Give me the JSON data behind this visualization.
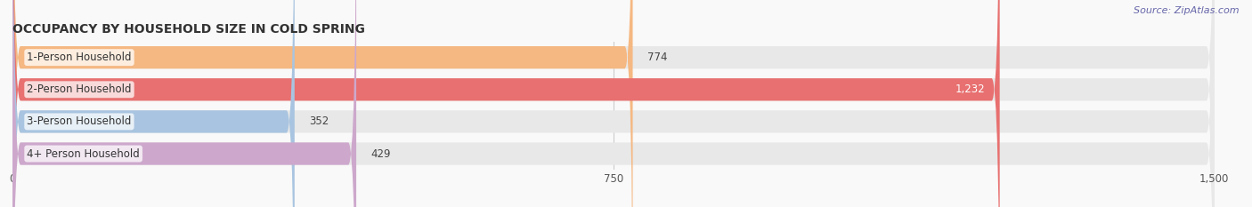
{
  "title": "OCCUPANCY BY HOUSEHOLD SIZE IN COLD SPRING",
  "source": "Source: ZipAtlas.com",
  "categories": [
    "1-Person Household",
    "2-Person Household",
    "3-Person Household",
    "4+ Person Household"
  ],
  "values": [
    774,
    1232,
    352,
    429
  ],
  "bar_colors": [
    "#f5b882",
    "#e87070",
    "#a8c4e0",
    "#cda8cc"
  ],
  "bar_bg_color": "#e8e8e8",
  "label_colors": [
    "#444444",
    "#ffffff",
    "#444444",
    "#444444"
  ],
  "xlim": [
    0,
    1500
  ],
  "xticks": [
    0,
    750,
    1500
  ],
  "figsize": [
    14.06,
    2.33
  ],
  "dpi": 100,
  "title_fontsize": 10,
  "bar_height": 0.7,
  "label_fontsize": 8.5,
  "value_fontsize": 8.5,
  "source_fontsize": 8,
  "background_color": "#f9f9f9"
}
